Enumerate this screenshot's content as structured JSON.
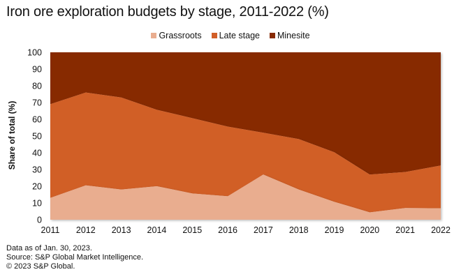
{
  "colors": {
    "grassroots": "#E9AD8F",
    "late_stage": "#D15E27",
    "minesite": "#872A00"
  },
  "chart_data": {
    "type": "area",
    "stacked": true,
    "title": "Iron ore exploration budgets by stage, 2011-2022 (%)",
    "xlabel": "",
    "ylabel": "Share of total (%)",
    "ylim": [
      0,
      100
    ],
    "yticks": [
      0,
      10,
      20,
      30,
      40,
      50,
      60,
      70,
      80,
      90,
      100
    ],
    "categories": [
      "2011",
      "2012",
      "2013",
      "2014",
      "2015",
      "2016",
      "2017",
      "2018",
      "2019",
      "2020",
      "2021",
      "2022"
    ],
    "legend_position": "top-center",
    "grid": false,
    "series": [
      {
        "name": "Grassroots",
        "key": "grassroots",
        "values": [
          13,
          20.5,
          18,
          20,
          15.7,
          14,
          27,
          18,
          10.7,
          4.4,
          7,
          6.8
        ]
      },
      {
        "name": "Late stage",
        "key": "late_stage",
        "values": [
          56,
          55.5,
          55,
          45.7,
          45,
          41.6,
          25,
          30.2,
          29.6,
          22.6,
          21.5,
          25.6
        ]
      },
      {
        "name": "Minesite",
        "key": "minesite",
        "values": [
          31,
          24,
          27,
          34.3,
          39.3,
          44.4,
          48,
          51.8,
          59.7,
          73,
          71.5,
          67.6
        ]
      }
    ]
  },
  "footer": {
    "line1": "Data as of Jan. 30, 2023.",
    "line2": "Source: S&P Global Market Intelligence.",
    "line3": "© 2023 S&P Global."
  }
}
